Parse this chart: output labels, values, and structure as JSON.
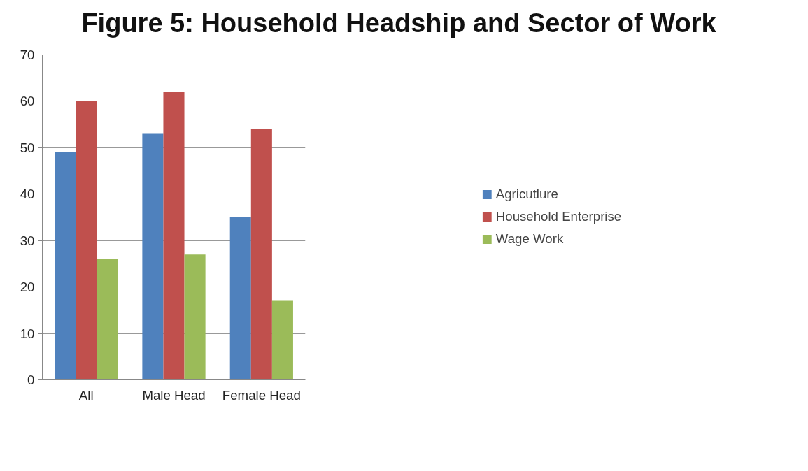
{
  "chart_data": {
    "type": "bar",
    "title": "Figure 5: Household Headship and Sector of Work",
    "categories": [
      "All",
      "Male Head",
      "Female Head"
    ],
    "series": [
      {
        "name": "Agricutlure",
        "color": "#4f81bd",
        "values": [
          49,
          53,
          35
        ]
      },
      {
        "name": "Household Enterprise",
        "color": "#c0504d",
        "values": [
          60,
          62,
          54
        ]
      },
      {
        "name": "Wage Work",
        "color": "#9bbb59",
        "values": [
          26,
          27,
          17
        ]
      }
    ],
    "ylim": [
      0,
      70
    ],
    "yticks": [
      0,
      10,
      20,
      30,
      40,
      50,
      60,
      70
    ],
    "grid": "y",
    "legend": "right"
  }
}
